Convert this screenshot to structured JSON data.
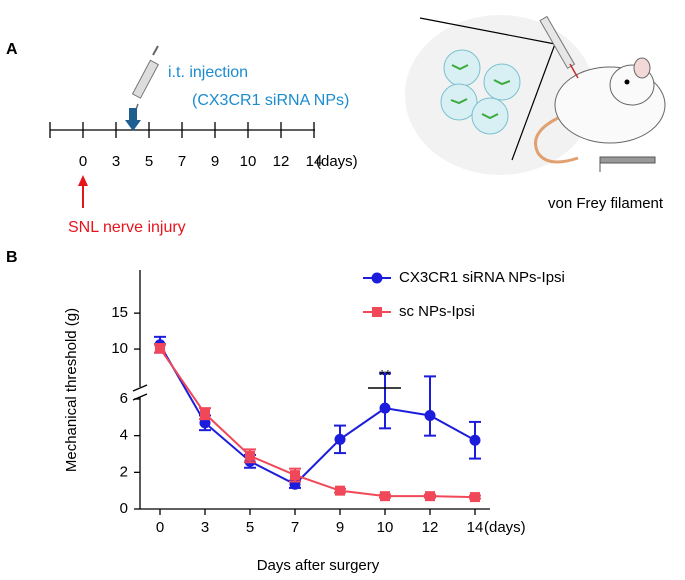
{
  "panel_a": {
    "label": "A",
    "injection_title": "i.t. injection",
    "injection_agent": "(CX3CR1 siRNA NPs)",
    "timeline_ticks": [
      "0",
      "3",
      "5",
      "7",
      "9",
      "10",
      "12",
      "14"
    ],
    "timeline_unit": "(days)",
    "injury": "SNL nerve injury",
    "device": "von Frey filament"
  },
  "chart_data": {
    "type": "line",
    "panel_label": "B",
    "x_label": "Days after surgery",
    "x_unit": "(days)",
    "y_label": "Mechanical threshold  (g)",
    "categories": [
      "0",
      "3",
      "5",
      "7",
      "9",
      "10",
      "12",
      "14"
    ],
    "series": [
      {
        "name": "CX3CR1 siRNA NPs-Ipsi",
        "color": "#1c1cdc",
        "marker": "circle",
        "values": [
          10.6,
          4.7,
          2.6,
          1.35,
          3.8,
          5.5,
          5.1,
          3.75
        ],
        "errors": [
          1.1,
          0.4,
          0.35,
          0.2,
          0.75,
          1.1,
          1.1,
          1.0
        ]
      },
      {
        "name": "sc NPs-Ipsi",
        "color": "#f04858",
        "marker": "square",
        "values": [
          10.1,
          5.2,
          2.9,
          1.85,
          1.0,
          0.7,
          0.7,
          0.65
        ],
        "errors": [
          0.6,
          0.3,
          0.35,
          0.35,
          0.1,
          0.08,
          0.08,
          0.08
        ]
      }
    ],
    "ylim": [
      0,
      6
    ],
    "yticks": [
      0,
      2,
      4,
      6
    ],
    "ylim_upper": [
      5,
      21
    ],
    "yticks_upper": [
      10,
      15
    ],
    "annotation": "**",
    "legend": "upper right"
  }
}
